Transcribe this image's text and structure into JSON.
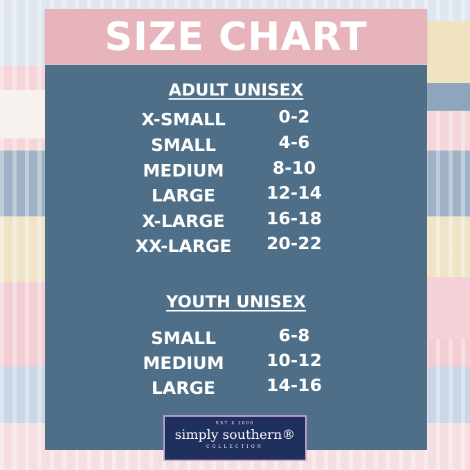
{
  "title": "SIZE CHART",
  "adult": {
    "heading": "ADULT UNISEX",
    "rows": [
      {
        "size": "X-SMALL",
        "range": "0-2"
      },
      {
        "size": "SMALL",
        "range": "4-6"
      },
      {
        "size": "MEDIUM",
        "range": "8-10"
      },
      {
        "size": "LARGE",
        "range": "12-14"
      },
      {
        "size": "X-LARGE",
        "range": "16-18"
      },
      {
        "size": "XX-LARGE",
        "range": "20-22"
      }
    ]
  },
  "youth": {
    "heading": "YOUTH UNISEX",
    "rows": [
      {
        "size": "SMALL",
        "range": "6-8"
      },
      {
        "size": "MEDIUM",
        "range": "10-12"
      },
      {
        "size": "LARGE",
        "range": "14-16"
      }
    ]
  },
  "logo": {
    "est": "EST $ 2006",
    "name": "simply southern®",
    "sub": "COLLECTION"
  },
  "colors": {
    "banner": "#e8b4bc",
    "panel": "#4e6f87",
    "logo_bg": "#1f2f5e"
  }
}
